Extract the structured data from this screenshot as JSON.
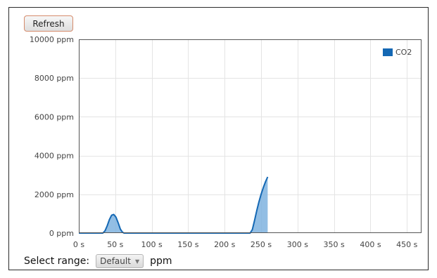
{
  "toolbar": {
    "refresh_label": "Refresh"
  },
  "range": {
    "label": "Select range:",
    "selected": "Default",
    "unit": "ppm"
  },
  "icons": {
    "dropdown": "chevron-down-icon"
  },
  "chart_data": {
    "type": "area",
    "title": "",
    "xlabel": "",
    "ylabel": "",
    "xlim": [
      0,
      470
    ],
    "ylim": [
      0,
      10000
    ],
    "x_ticks": [
      0,
      50,
      100,
      150,
      200,
      250,
      300,
      350,
      400,
      450
    ],
    "x_tick_labels": [
      "0 s",
      "50 s",
      "100 s",
      "150 s",
      "200 s",
      "250 s",
      "300 s",
      "350 s",
      "400 s",
      "450 s"
    ],
    "y_ticks": [
      0,
      2000,
      4000,
      6000,
      8000,
      10000
    ],
    "y_tick_labels": [
      "0 ppm",
      "2000 ppm",
      "4000 ppm",
      "6000 ppm",
      "8000 ppm",
      "10000 ppm"
    ],
    "grid": true,
    "legend_position": "top-right",
    "series": [
      {
        "name": "CO2",
        "color": "#1468b4",
        "fill": "#7fb3df",
        "x": [
          0,
          33,
          36,
          39,
          42,
          45,
          48,
          51,
          54,
          57,
          60,
          62,
          66,
          100,
          150,
          200,
          235,
          238,
          241,
          244,
          247,
          250,
          253,
          256,
          259
        ],
        "y": [
          0,
          0,
          120,
          380,
          700,
          920,
          960,
          820,
          520,
          200,
          40,
          0,
          0,
          0,
          0,
          0,
          0,
          180,
          650,
          1150,
          1600,
          2000,
          2350,
          2650,
          2900
        ]
      }
    ]
  }
}
